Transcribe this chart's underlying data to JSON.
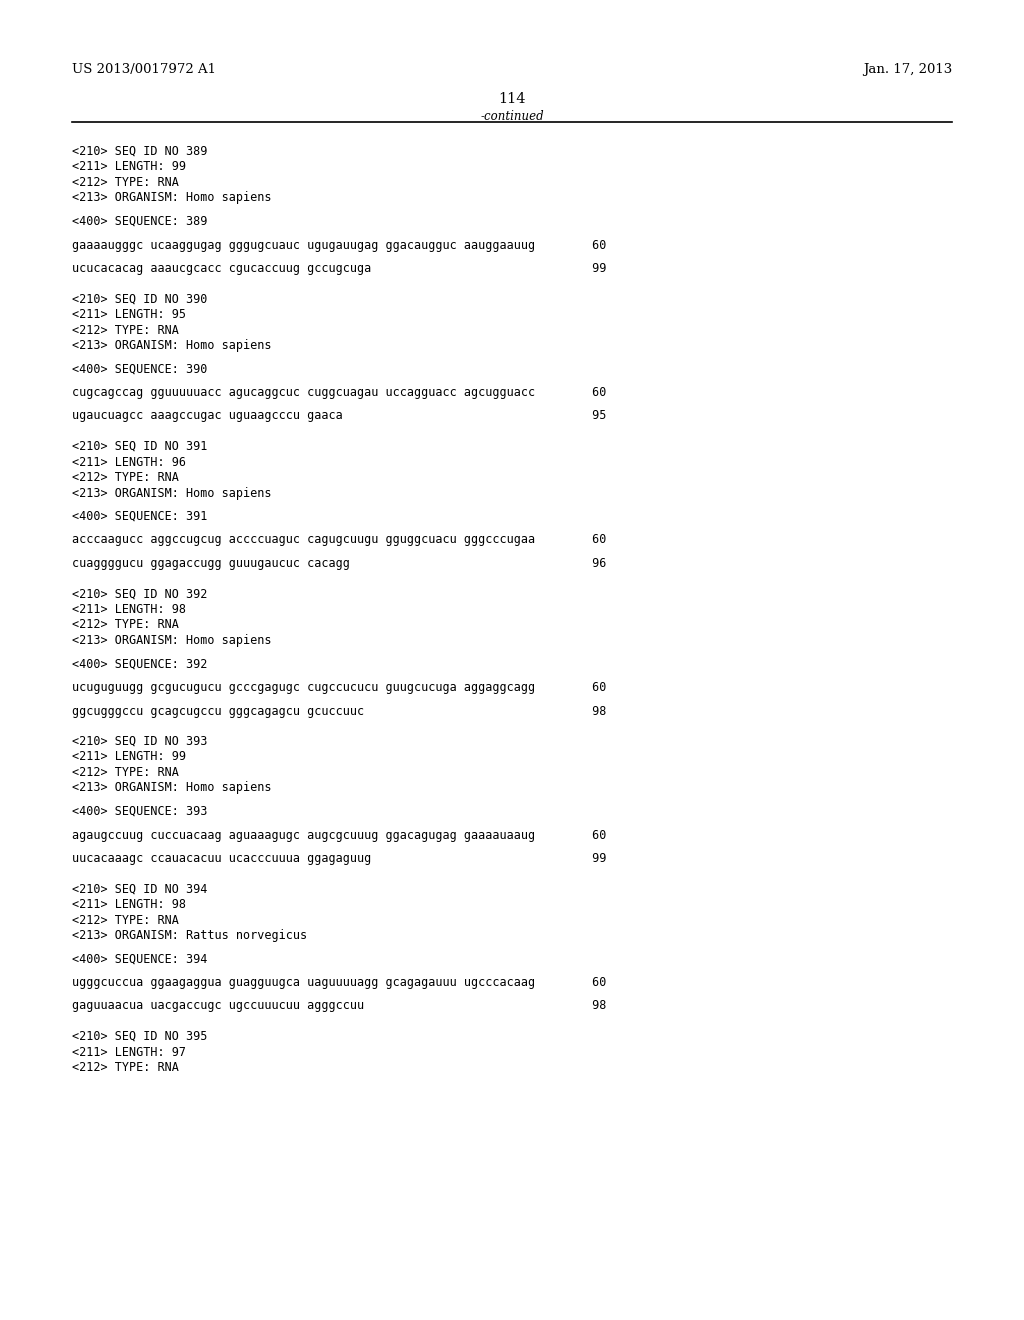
{
  "header_left": "US 2013/0017972 A1",
  "header_right": "Jan. 17, 2013",
  "page_number": "114",
  "continued_label": "-continued",
  "background_color": "#ffffff",
  "text_color": "#000000",
  "font_size_header": 9.5,
  "font_size_body": 8.5,
  "font_size_page": 10.5,
  "lines": [
    "<210> SEQ ID NO 389",
    "<211> LENGTH: 99",
    "<212> TYPE: RNA",
    "<213> ORGANISM: Homo sapiens",
    "",
    "<400> SEQUENCE: 389",
    "",
    "gaaaaugggc ucaaggugag gggugcuauc ugugauugag ggacaugguc aauggaauug        60",
    "",
    "ucucacacag aaaucgcacc cgucaccuug gccugcuga                               99",
    "",
    "",
    "<210> SEQ ID NO 390",
    "<211> LENGTH: 95",
    "<212> TYPE: RNA",
    "<213> ORGANISM: Homo sapiens",
    "",
    "<400> SEQUENCE: 390",
    "",
    "cugcagccag gguuuuuacc agucaggcuc cuggcuagau uccagguacc agcugguacc        60",
    "",
    "ugaucuagcc aaagccugac uguaagcccu gaaca                                   95",
    "",
    "",
    "<210> SEQ ID NO 391",
    "<211> LENGTH: 96",
    "<212> TYPE: RNA",
    "<213> ORGANISM: Homo sapiens",
    "",
    "<400> SEQUENCE: 391",
    "",
    "acccaagucc aggccugcug accccuaguc cagugcuugu gguggcuacu gggcccugaa        60",
    "",
    "cuaggggucu ggagaccugg guuugaucuc cacagg                                  96",
    "",
    "",
    "<210> SEQ ID NO 392",
    "<211> LENGTH: 98",
    "<212> TYPE: RNA",
    "<213> ORGANISM: Homo sapiens",
    "",
    "<400> SEQUENCE: 392",
    "",
    "ucuguguugg gcgucugucu gcccgagugc cugccucucu guugcucuga aggaggcagg        60",
    "",
    "ggcugggccu gcagcugccu gggcagagcu gcuccuuc                                98",
    "",
    "",
    "<210> SEQ ID NO 393",
    "<211> LENGTH: 99",
    "<212> TYPE: RNA",
    "<213> ORGANISM: Homo sapiens",
    "",
    "<400> SEQUENCE: 393",
    "",
    "agaugccuug cuccuacaag aguaaagugc augcgcuuug ggacagugag gaaaauaaug        60",
    "",
    "uucacaaagc ccauacacuu ucacccuuua ggagaguug                               99",
    "",
    "",
    "<210> SEQ ID NO 394",
    "<211> LENGTH: 98",
    "<212> TYPE: RNA",
    "<213> ORGANISM: Rattus norvegicus",
    "",
    "<400> SEQUENCE: 394",
    "",
    "ugggcuccua ggaagaggua guagguugca uaguuuuagg gcagagauuu ugcccacaag        60",
    "",
    "gaguuaacua uacgaccugc ugccuuucuu agggccuu                                98",
    "",
    "",
    "<210> SEQ ID NO 395",
    "<211> LENGTH: 97",
    "<212> TYPE: RNA"
  ]
}
